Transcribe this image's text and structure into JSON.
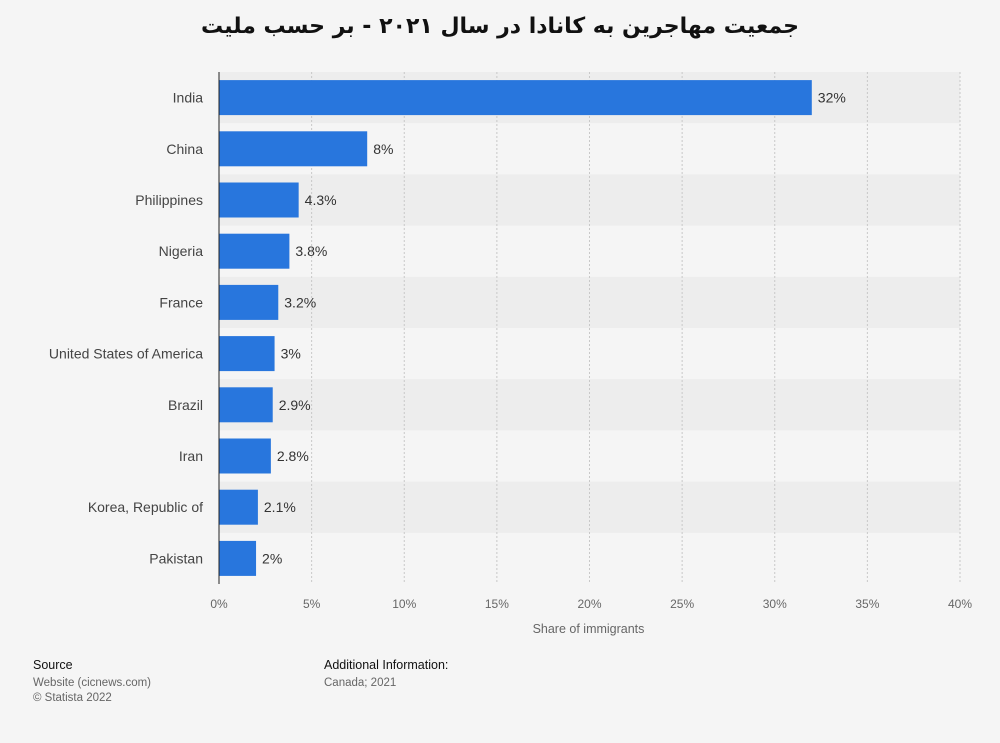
{
  "title": "جمعیت مهاجرین به کانادا در سال ۲۰۲۱ - بر حسب ملیت",
  "colors": {
    "bar": "#2876dd",
    "background": "#f5f5f5",
    "band": "#ededed",
    "grid": "#c8c8c8"
  },
  "chart_data": {
    "type": "bar",
    "orientation": "horizontal",
    "categories": [
      "India",
      "China",
      "Philippines",
      "Nigeria",
      "France",
      "United States of America",
      "Brazil",
      "Iran",
      "Korea, Republic of",
      "Pakistan"
    ],
    "values": [
      32,
      8,
      4.3,
      3.8,
      3.2,
      3,
      2.9,
      2.8,
      2.1,
      2
    ],
    "value_labels": [
      "32%",
      "8%",
      "4.3%",
      "3.8%",
      "3.2%",
      "3%",
      "2.9%",
      "2.8%",
      "2.1%",
      "2%"
    ],
    "xlabel": "Share of immigrants",
    "ylabel": "",
    "xlim": [
      0,
      40
    ],
    "x_ticks": [
      "0%",
      "5%",
      "10%",
      "15%",
      "20%",
      "25%",
      "30%",
      "35%",
      "40%"
    ],
    "grid": true
  },
  "footer": {
    "source_heading": "Source",
    "source_lines": [
      "Website (cicnews.com)",
      "© Statista 2022"
    ],
    "info_heading": "Additional Information:",
    "info_lines": [
      "Canada; 2021"
    ]
  }
}
